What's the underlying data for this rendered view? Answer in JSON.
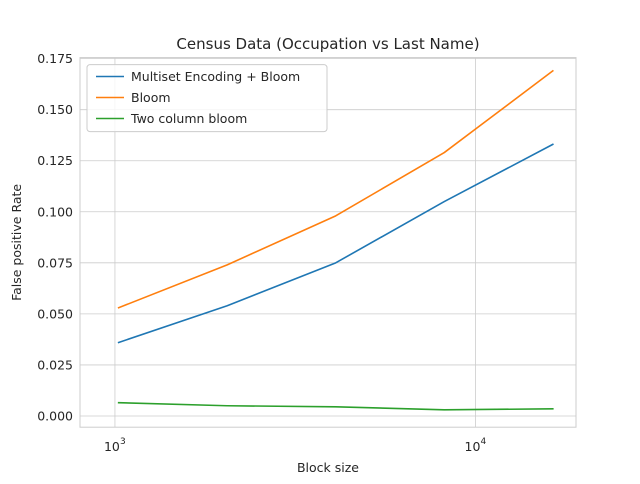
{
  "chart_data": {
    "type": "line",
    "title": "Census Data (Occupation vs Last Name)",
    "xlabel": "Block size",
    "ylabel": "False positive Rate",
    "xscale": "log",
    "xlim": [
      800,
      19000
    ],
    "ylim": [
      -0.0055,
      0.1755
    ],
    "x": [
      1024,
      2048,
      4096,
      8192,
      16384
    ],
    "xticks": [
      {
        "value": 1000,
        "base": "10",
        "exp": "3"
      },
      {
        "value": 10000,
        "base": "10",
        "exp": "4"
      }
    ],
    "yticks": [
      "0.000",
      "0.025",
      "0.050",
      "0.075",
      "0.100",
      "0.125",
      "0.150",
      "0.175"
    ],
    "grid": true,
    "legend_position": "top-left",
    "series": [
      {
        "name": "Multiset Encoding + Bloom",
        "color": "#1f77b4",
        "values": [
          0.036,
          0.054,
          0.075,
          0.105,
          0.133
        ]
      },
      {
        "name": "Bloom",
        "color": "#ff7f0e",
        "values": [
          0.053,
          0.074,
          0.098,
          0.129,
          0.169
        ]
      },
      {
        "name": "Two column bloom",
        "color": "#2ca02c",
        "values": [
          0.0065,
          0.005,
          0.0045,
          0.003,
          0.0035
        ]
      }
    ]
  }
}
